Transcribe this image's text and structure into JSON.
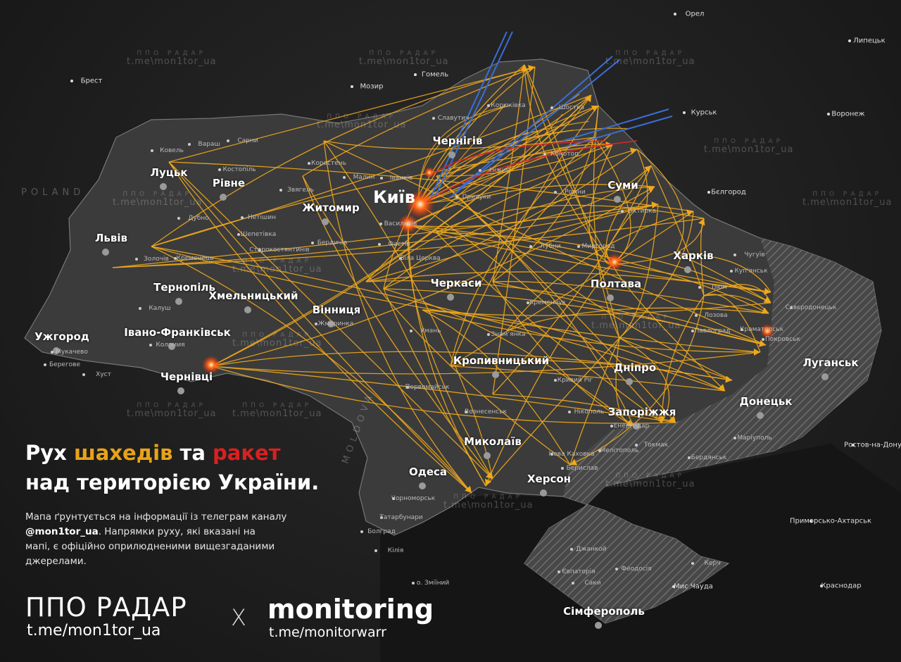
{
  "title": {
    "part1": "Рух ",
    "shaheds": "шахедів",
    "part2": " та ",
    "missiles": "ракет",
    "line2": "над територією України."
  },
  "description": {
    "line1": "Мапа ґрунтується на інформації із телеграм каналу",
    "handle": "@mon1tor_ua",
    "line2": ". Напрямки руху, які вказані на",
    "line3": "мапі, є офіційно оприлюдненими вищезгаданими джерелами."
  },
  "logos": {
    "ppo_name": "ППО РАДАР",
    "ppo_link": "t.me/mon1tor_ua",
    "separator": "X",
    "monitoring_name": "monitoring",
    "monitoring_link": "t.me/monitorwarr"
  },
  "watermark": {
    "name": "ППО РАДАР",
    "link": "t.me\\mon1tor_ua"
  },
  "countries": {
    "poland": "POLAND",
    "moldova": "MOLDOVA"
  },
  "capital": "Київ",
  "major_cities": [
    "Луцьк",
    "Рівне",
    "Житомир",
    "Чернігів",
    "Суми",
    "Харків",
    "Полтава",
    "Львів",
    "Тернопіль",
    "Хмельницький",
    "Вінниця",
    "Черкаси",
    "Івано-Франківськ",
    "Ужгород",
    "Чернівці",
    "Кропивницький",
    "Дніпро",
    "Запоріжжя",
    "Донецьк",
    "Луганськ",
    "Миколаїв",
    "Одеса",
    "Херсон",
    "Сімферополь"
  ],
  "foreign_cities": [
    "Орел",
    "Липецьк",
    "Гомель",
    "Брест",
    "Мозир",
    "Курськ",
    "Воронеж",
    "Бєлгород",
    "Ростов-на-Дону",
    "Приморсько-Ахтарськ",
    "Краснодар",
    "Мис Чауда"
  ],
  "towns": [
    "Ковель",
    "Вараш",
    "Сарни",
    "Костопіль",
    "Коростень",
    "Малин",
    "Іванків",
    "Звягель",
    "Дубно",
    "Нетішин",
    "Шепетівка",
    "Бердичів",
    "Васильків",
    "Фастів",
    "Біла Церква",
    "Славутич",
    "Корюківка",
    "Шостка",
    "Ніжин",
    "Конотоп",
    "Ромни",
    "Прилуки",
    "Лубни",
    "Миргород",
    "Охтирка",
    "Кременчук",
    "Умань",
    "Первомайськ",
    "Нікополь",
    "Кривий Ріг",
    "Мелітополь",
    "Бердянськ",
    "Маріуполь",
    "Токмак",
    "Енергодар",
    "Краматорськ",
    "Покровськ",
    "Сєвєродонецьк",
    "Чорноморськ",
    "Джанкой",
    "Феодосія",
    "Керч",
    "Євпаторія",
    "Саки",
    "о. Зміїний",
    "Коломия",
    "Калуш",
    "Мукачево",
    "Берегове",
    "Хуст",
    "Старокостянтинів",
    "Кременець",
    "Золочів",
    "Жмеринка",
    "Знамʼянка",
    "Вознесенськ",
    "Нова Каховка",
    "Берислав",
    "Ізюм",
    "Чугуїв",
    "Куп'янськ",
    "Павлоград",
    "Лозова",
    "Кілія",
    "Татарбунари",
    "Болград"
  ],
  "colors": {
    "shahed": "#f0a81c",
    "missile": "#d8262a",
    "ballistic": "#3a6fd8",
    "background": "#1e1e1e",
    "land": "#3a3a3a",
    "occupied_hatch": "#8a8a8a"
  }
}
